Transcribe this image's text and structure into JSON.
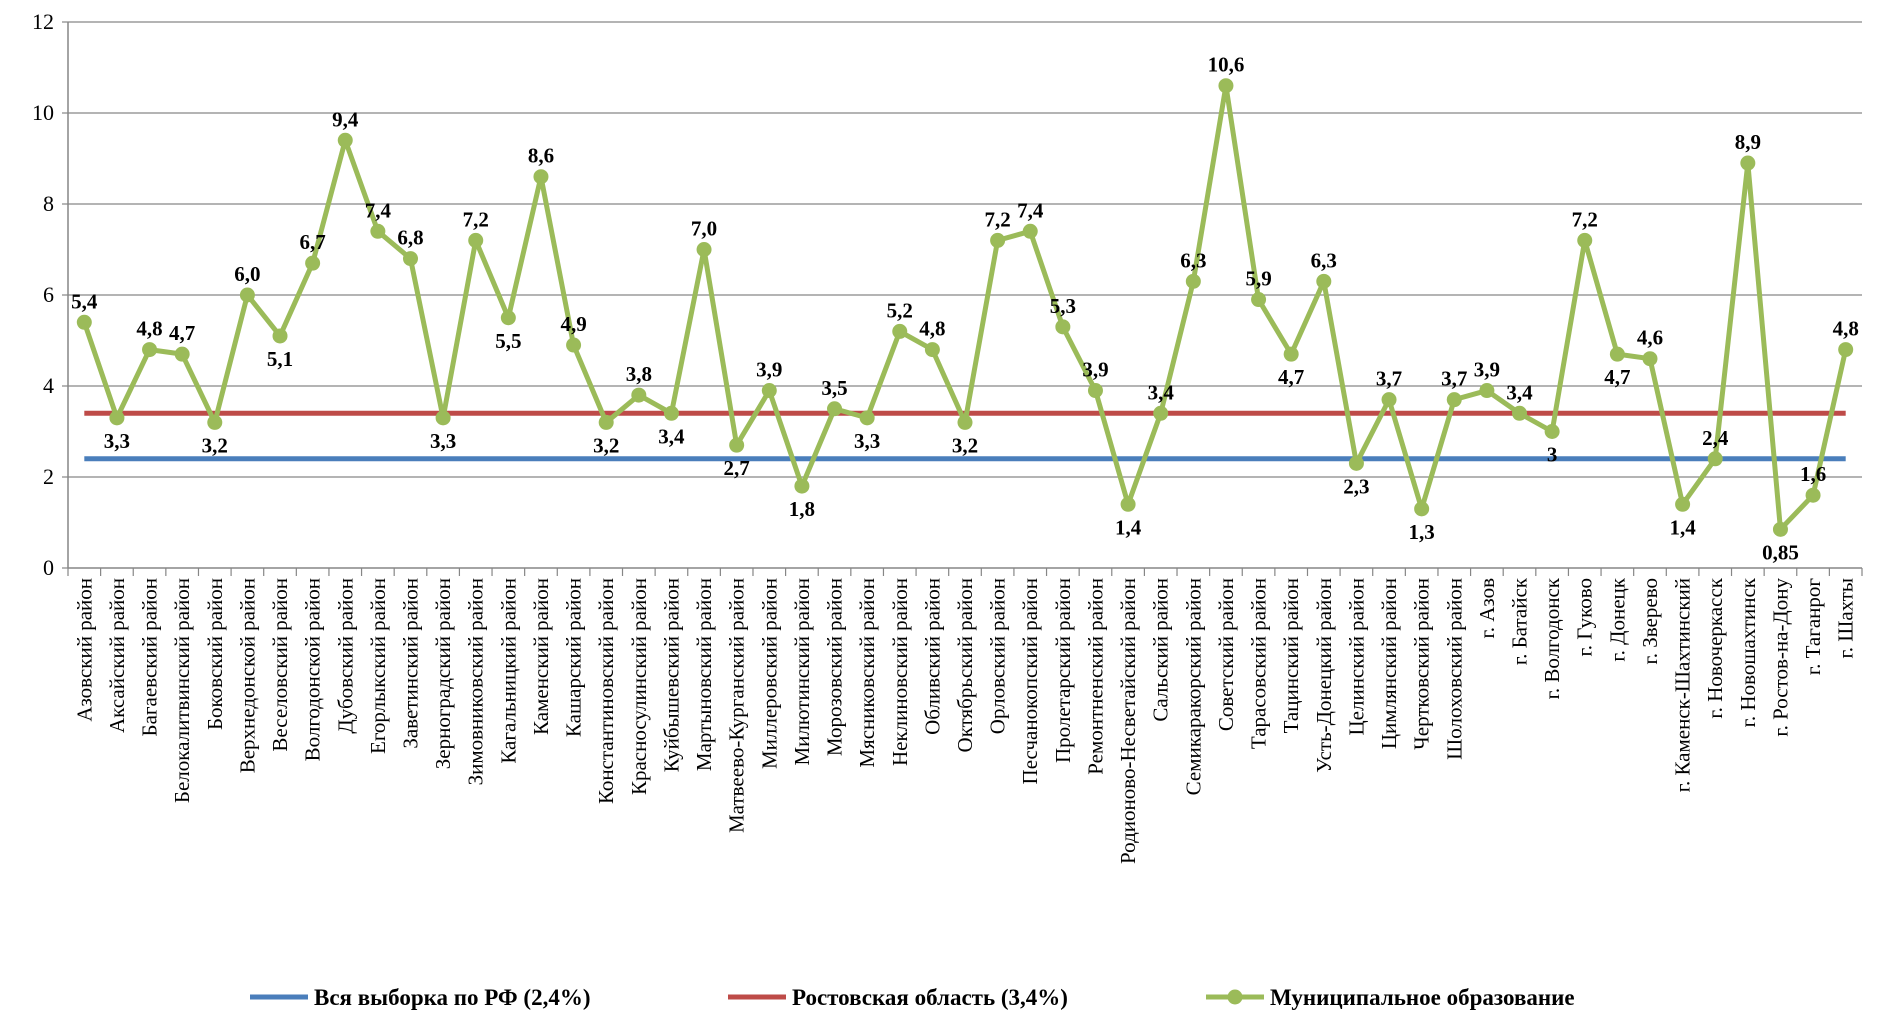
{
  "chart_data": {
    "type": "line",
    "title": "",
    "xlabel": "",
    "ylabel": "",
    "ylim": [
      0,
      12
    ],
    "yticks": [
      "0",
      "2",
      "4",
      "6",
      "8",
      "10",
      "12"
    ],
    "grid": true,
    "legend_position": "bottom",
    "categories": [
      "Азовский район",
      "Аксайский район",
      "Багаевский район",
      "Белокалитвинский район",
      "Боковский район",
      "Верхнедонской район",
      "Веселовский район",
      "Волгодонской район",
      "Дубовский район",
      "Егорлыкский район",
      "Заветинский район",
      "Зерноградский район",
      "Зимовниковский район",
      "Кагальницкий район",
      "Каменский район",
      "Кашарский район",
      "Константиновский район",
      "Красносулинский район",
      "Куйбышевский район",
      "Мартыновский район",
      "Матвеево-Курганский район",
      "Миллеровский район",
      "Милютинский район",
      "Морозовский район",
      "Мясниковский район",
      "Неклиновский район",
      "Обливский район",
      "Октябрьский район",
      "Орловский район",
      "Песчанокопский район",
      "Пролетарский район",
      "Ремонтненский район",
      "Родионово-Несветайский район",
      "Сальский район",
      "Семикаракорский район",
      "Советский район",
      "Тарасовский район",
      "Тацинский район",
      "Усть-Донецкий район",
      "Целинский район",
      "Цимлянский район",
      "Чертковский район",
      "Шолоховский район",
      "г. Азов",
      "г. Батайск",
      "г. Волгодонск",
      "г. Гуково",
      "г. Донецк",
      "г. Зверево",
      "г. Каменск-Шахтинский",
      "г. Новочеркасск",
      "г. Новошахтинск",
      "г. Ростов-на-Дону",
      "г. Таганрог",
      "г. Шахты"
    ],
    "series": [
      {
        "name": "Вся выборка по РФ (2,4%)",
        "color": "#4A7EBB",
        "constant": 2.4
      },
      {
        "name": "Ростовская область (3,4%)",
        "color": "#BE4B48",
        "constant": 3.4
      },
      {
        "name": "Муниципальное образование",
        "color": "#9BBB59",
        "values": [
          5.4,
          3.3,
          4.8,
          4.7,
          3.2,
          6.0,
          5.1,
          6.7,
          9.4,
          7.4,
          6.8,
          3.3,
          7.2,
          5.5,
          8.6,
          4.9,
          3.2,
          3.8,
          3.4,
          7.0,
          2.7,
          3.9,
          1.8,
          3.5,
          3.3,
          5.2,
          4.8,
          3.2,
          7.2,
          7.4,
          5.3,
          3.9,
          1.4,
          3.4,
          6.3,
          10.6,
          5.9,
          4.7,
          6.3,
          2.3,
          3.7,
          1.3,
          3.7,
          3.9,
          3.4,
          3.0,
          7.2,
          4.7,
          4.6,
          1.4,
          2.4,
          8.9,
          0.85,
          1.6,
          4.8
        ],
        "labels": [
          "5,4",
          "3,3",
          "4,8",
          "4,7",
          "3,2",
          "6,0",
          "5,1",
          "6,7",
          "9,4",
          "7,4",
          "6,8",
          "3,3",
          "7,2",
          "5,5",
          "8,6",
          "4,9",
          "3,2",
          "3,8",
          "3,4",
          "7,0",
          "2,7",
          "3,9",
          "1,8",
          "3,5",
          "3,3",
          "5,2",
          "4,8",
          "3,2",
          "7,2",
          "7,4",
          "5,3",
          "3,9",
          "1,4",
          "3,4",
          "6,3",
          "10,6",
          "5,9",
          "4,7",
          "6,3",
          "2,3",
          "3,7",
          "1,3",
          "3,7",
          "3,9",
          "3,4",
          "3",
          "7,2",
          "4,7",
          "4,6",
          "1,4",
          "2,4",
          "8,9",
          "0,85",
          "1,6",
          "4,8"
        ],
        "label_positions": [
          "above",
          "below",
          "above",
          "above",
          "below",
          "above",
          "below",
          "above",
          "above",
          "above",
          "above",
          "below",
          "above",
          "below",
          "above",
          "above",
          "below",
          "above",
          "below",
          "above",
          "below",
          "above",
          "below",
          "above",
          "below",
          "above",
          "above",
          "below",
          "above",
          "above",
          "above",
          "above",
          "below",
          "above",
          "above",
          "above",
          "above",
          "below",
          "above",
          "below",
          "above",
          "below",
          "above",
          "above",
          "above",
          "below",
          "above",
          "below",
          "above",
          "below",
          "above",
          "above",
          "below",
          "above",
          "above"
        ]
      }
    ]
  }
}
